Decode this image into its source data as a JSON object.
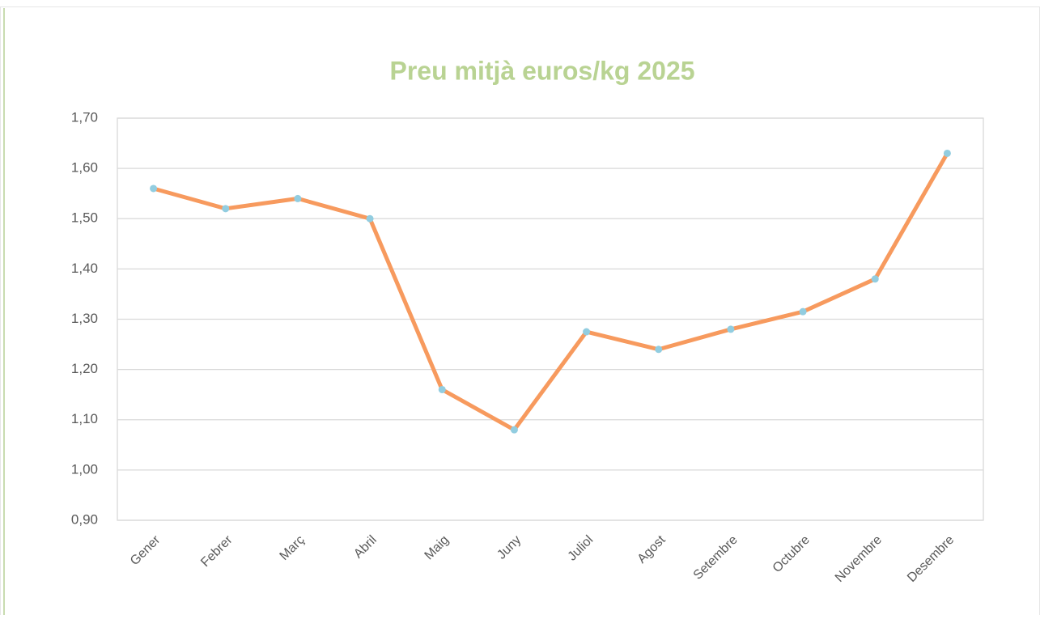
{
  "chart_data": {
    "type": "line",
    "title": "Preu mitjà euros/kg 2025",
    "categories": [
      "Gener",
      "Febrer",
      "Març",
      "Abril",
      "Maig",
      "Juny",
      "Juliol",
      "Agost",
      "Setembre",
      "Octubre",
      "Novembre",
      "Desembre"
    ],
    "series": [
      {
        "color": "#f79a5e",
        "marker_color": "#92cde0",
        "values": [
          1.56,
          1.52,
          1.54,
          1.5,
          1.16,
          1.08,
          1.275,
          1.24,
          1.28,
          1.315,
          1.38,
          1.63
        ]
      }
    ],
    "ylim": [
      0.9,
      1.7
    ],
    "yticks": [
      {
        "value": 0.9,
        "label": "0,90"
      },
      {
        "value": 1.0,
        "label": "1,00"
      },
      {
        "value": 1.1,
        "label": "1,10"
      },
      {
        "value": 1.2,
        "label": "1,20"
      },
      {
        "value": 1.3,
        "label": "1,30"
      },
      {
        "value": 1.4,
        "label": "1,40"
      },
      {
        "value": 1.5,
        "label": "1,50"
      },
      {
        "value": 1.6,
        "label": "1,60"
      },
      {
        "value": 1.7,
        "label": "1,70"
      }
    ],
    "grid": true
  }
}
